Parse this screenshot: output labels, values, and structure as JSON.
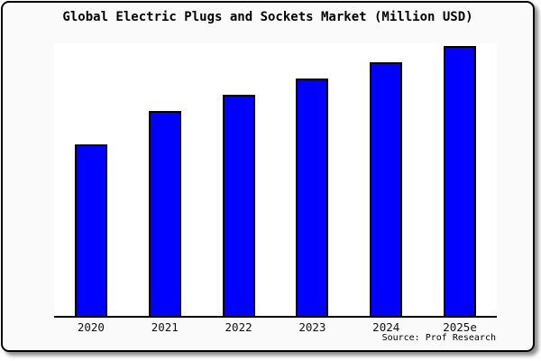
{
  "chart_data": {
    "type": "bar",
    "title": "Global Electric Plugs and Sockets Market (Million USD)",
    "categories": [
      "2020",
      "2021",
      "2022",
      "2023",
      "2024",
      "2025e"
    ],
    "values": [
      63,
      75,
      81,
      87,
      93,
      99
    ],
    "value_note": "no y-axis or data labels shown; values are relative bar heights estimated from pixels, max ~100",
    "xlabel": "",
    "ylabel": "",
    "ylim": [
      0,
      100
    ],
    "grid": false,
    "legend": false,
    "bar_fill_color": "#0000ff",
    "bar_border_color": "#000000",
    "plot_background": "#ffffff",
    "card_background": "#fafafa",
    "source": "Source: Prof Research"
  }
}
